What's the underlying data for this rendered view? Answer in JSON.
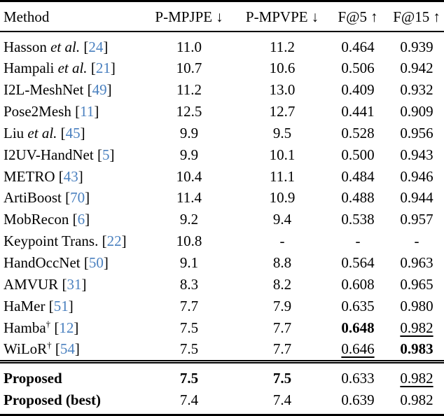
{
  "page": {
    "background": "#ffffff"
  },
  "table": {
    "colors": {
      "citation_blue": "#4a80bf",
      "text": "#000000",
      "rule": "#000000"
    },
    "etal_text": "et al.",
    "dagger_symbol": "†",
    "columns": [
      {
        "label": "Method",
        "arrow": ""
      },
      {
        "label": "P-MPJPE",
        "arrow": "↓"
      },
      {
        "label": "P-MPVPE",
        "arrow": "↓"
      },
      {
        "label": "F@5",
        "arrow": "↑"
      },
      {
        "label": "F@15",
        "arrow": "↑"
      }
    ],
    "rows": [
      {
        "name": "Hasson",
        "etal": true,
        "cite": "24",
        "values": [
          {
            "t": "11.0"
          },
          {
            "t": "11.2"
          },
          {
            "t": "0.464"
          },
          {
            "t": "0.939"
          }
        ]
      },
      {
        "name": "Hampali",
        "etal": true,
        "cite": "21",
        "values": [
          {
            "t": "10.7"
          },
          {
            "t": "10.6"
          },
          {
            "t": "0.506"
          },
          {
            "t": "0.942"
          }
        ]
      },
      {
        "name": "I2L-MeshNet",
        "cite": "49",
        "values": [
          {
            "t": "11.2"
          },
          {
            "t": "13.0"
          },
          {
            "t": "0.409"
          },
          {
            "t": "0.932"
          }
        ]
      },
      {
        "name": "Pose2Mesh",
        "cite": "11",
        "values": [
          {
            "t": "12.5"
          },
          {
            "t": "12.7"
          },
          {
            "t": "0.441"
          },
          {
            "t": "0.909"
          }
        ]
      },
      {
        "name": "Liu",
        "etal": true,
        "cite": "45",
        "values": [
          {
            "t": "9.9"
          },
          {
            "t": "9.5"
          },
          {
            "t": "0.528"
          },
          {
            "t": "0.956"
          }
        ]
      },
      {
        "name": "I2UV-HandNet",
        "cite": "5",
        "values": [
          {
            "t": "9.9"
          },
          {
            "t": "10.1"
          },
          {
            "t": "0.500"
          },
          {
            "t": "0.943"
          }
        ]
      },
      {
        "name": "METRO",
        "cite": "43",
        "values": [
          {
            "t": "10.4"
          },
          {
            "t": "11.1"
          },
          {
            "t": "0.484"
          },
          {
            "t": "0.946"
          }
        ]
      },
      {
        "name": "ArtiBoost",
        "cite": "70",
        "values": [
          {
            "t": "11.4"
          },
          {
            "t": "10.9"
          },
          {
            "t": "0.488"
          },
          {
            "t": "0.944"
          }
        ]
      },
      {
        "name": "MobRecon",
        "cite": "6",
        "values": [
          {
            "t": "9.2"
          },
          {
            "t": "9.4"
          },
          {
            "t": "0.538"
          },
          {
            "t": "0.957"
          }
        ]
      },
      {
        "name": "Keypoint Trans.",
        "cite": "22",
        "values": [
          {
            "t": "10.8"
          },
          {
            "t": "-"
          },
          {
            "t": "-"
          },
          {
            "t": "-"
          }
        ]
      },
      {
        "name": "HandOccNet",
        "cite": "50",
        "values": [
          {
            "t": "9.1"
          },
          {
            "t": "8.8"
          },
          {
            "t": "0.564"
          },
          {
            "t": "0.963"
          }
        ]
      },
      {
        "name": "AMVUR",
        "cite": "31",
        "values": [
          {
            "t": "8.3"
          },
          {
            "t": "8.2"
          },
          {
            "t": "0.608"
          },
          {
            "t": "0.965"
          }
        ]
      },
      {
        "name": "HaMer",
        "cite": "51",
        "values": [
          {
            "t": "7.7"
          },
          {
            "t": "7.9"
          },
          {
            "t": "0.635"
          },
          {
            "t": "0.980"
          }
        ]
      },
      {
        "name": "Hamba",
        "dagger": true,
        "cite": "12",
        "values": [
          {
            "t": "7.5"
          },
          {
            "t": "7.7"
          },
          {
            "t": "0.648",
            "s": "bold"
          },
          {
            "t": "0.982",
            "s": "underline"
          }
        ]
      },
      {
        "name": "WiLoR",
        "dagger": true,
        "cite": "54",
        "values": [
          {
            "t": "7.5"
          },
          {
            "t": "7.7"
          },
          {
            "t": "0.646",
            "s": "underline"
          },
          {
            "t": "0.983",
            "s": "bold"
          }
        ]
      }
    ],
    "proposed_rows": [
      {
        "name": "Proposed",
        "bold": true,
        "values": [
          {
            "t": "7.5",
            "s": "bold"
          },
          {
            "t": "7.5",
            "s": "bold"
          },
          {
            "t": "0.633"
          },
          {
            "t": "0.982",
            "s": "underline"
          }
        ]
      },
      {
        "name": "Proposed (best)",
        "bold": true,
        "values": [
          {
            "t": "7.4"
          },
          {
            "t": "7.4"
          },
          {
            "t": "0.639"
          },
          {
            "t": "0.982"
          }
        ]
      }
    ]
  }
}
